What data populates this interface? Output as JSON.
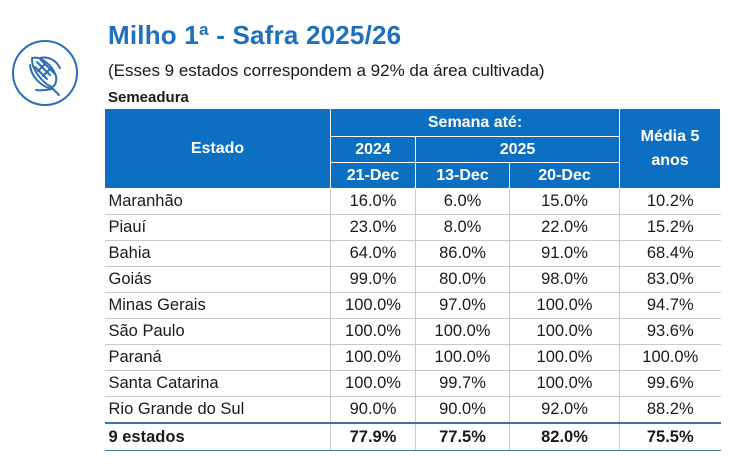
{
  "header": {
    "title": "Milho 1ª - Safra 2025/26",
    "subtitle": "(Esses 9 estados correspondem a 92% da área cultivada)",
    "section": "Semeadura"
  },
  "icon": {
    "name": "corn-icon",
    "color": "#2a6fb5"
  },
  "table": {
    "head": {
      "estado": "Estado",
      "semana": "Semana até:",
      "year_2024": "2024",
      "year_2025": "2025",
      "date_2024": "21-Dec",
      "date_2025a": "13-Dec",
      "date_2025b": "20-Dec",
      "media": "Média  5 anos"
    },
    "rows": [
      {
        "estado": "Maranhão",
        "v2024": "16.0%",
        "v13": "6.0%",
        "v20": "15.0%",
        "media": "10.2%"
      },
      {
        "estado": "Piauí",
        "v2024": "23.0%",
        "v13": "8.0%",
        "v20": "22.0%",
        "media": "15.2%"
      },
      {
        "estado": "Bahia",
        "v2024": "64.0%",
        "v13": "86.0%",
        "v20": "91.0%",
        "media": "68.4%"
      },
      {
        "estado": "Goiás",
        "v2024": "99.0%",
        "v13": "80.0%",
        "v20": "98.0%",
        "media": "83.0%"
      },
      {
        "estado": "Minas Gerais",
        "v2024": "100.0%",
        "v13": "97.0%",
        "v20": "100.0%",
        "media": "94.7%"
      },
      {
        "estado": "São Paulo",
        "v2024": "100.0%",
        "v13": "100.0%",
        "v20": "100.0%",
        "media": "93.6%"
      },
      {
        "estado": "Paraná",
        "v2024": "100.0%",
        "v13": "100.0%",
        "v20": "100.0%",
        "media": "100.0%"
      },
      {
        "estado": "Santa Catarina",
        "v2024": "100.0%",
        "v13": "99.7%",
        "v20": "100.0%",
        "media": "99.6%"
      },
      {
        "estado": "Rio Grande do Sul",
        "v2024": "90.0%",
        "v13": "90.0%",
        "v20": "92.0%",
        "media": "88.2%"
      }
    ],
    "total": {
      "estado": "9 estados",
      "v2024": "77.9%",
      "v13": "77.5%",
      "v20": "82.0%",
      "media": "75.5%"
    }
  }
}
